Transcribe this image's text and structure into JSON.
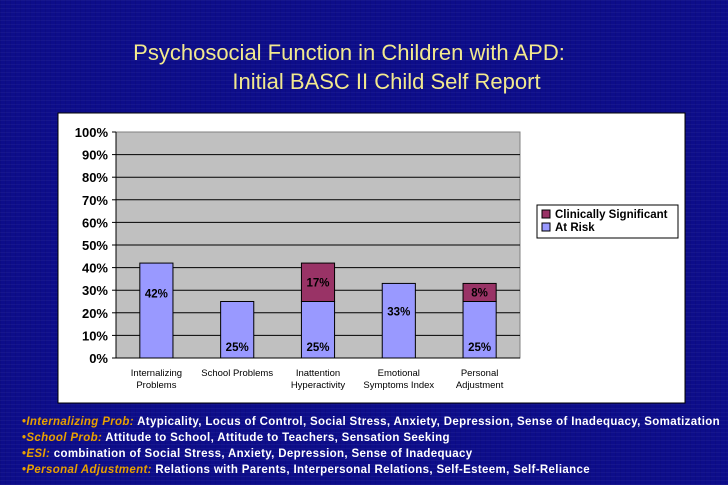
{
  "title": {
    "line1": "Psychosocial Function in Children with APD:",
    "line2": "Initial BASC II Child Self Report"
  },
  "chart_data": {
    "type": "bar",
    "stacked": true,
    "categories": [
      [
        "Internalizing",
        "Problems"
      ],
      [
        "School Problems"
      ],
      [
        "Inattention",
        "Hyperactivity"
      ],
      [
        "Emotional",
        "Symptoms Index"
      ],
      [
        "Personal",
        "Adjustment"
      ]
    ],
    "series": [
      {
        "name": "At Risk",
        "values": [
          42,
          25,
          25,
          33,
          25
        ],
        "labels": [
          "42%",
          "25%",
          "25%",
          "33%",
          "25%"
        ],
        "color": "#9999ff"
      },
      {
        "name": "Clinically Significant",
        "values": [
          0,
          0,
          17,
          0,
          8
        ],
        "labels": [
          "",
          "",
          "17%",
          "",
          "8%"
        ],
        "color": "#993366"
      }
    ],
    "legend_order": [
      "Clinically Significant",
      "At Risk"
    ],
    "legend_position": "right",
    "y_ticks": [
      "100%",
      "90%",
      "80%",
      "70%",
      "60%",
      "50%",
      "40%",
      "30%",
      "20%",
      "10%",
      "0%"
    ],
    "ylim": [
      0,
      100
    ],
    "grid": true,
    "plot_background": "#c0c0c0"
  },
  "notes": [
    {
      "bullet": "•",
      "term": "Internalizing Prob:",
      "text": " Atypicality, Locus of Control, Social Stress, Anxiety, Depression, Sense of Inadequacy, Somatization"
    },
    {
      "bullet": "•",
      "term": "School Prob:",
      "text": " Attitude to School, Attitude to Teachers, Sensation Seeking"
    },
    {
      "bullet": "•",
      "term": "ESI:",
      "text": " combination of Social Stress, Anxiety, Depression, Sense of Inadequacy"
    },
    {
      "bullet": "•",
      "term": "Personal Adjustment:",
      "text": " Relations with Parents, Interpersonal Relations, Self-Esteem, Self-Reliance"
    }
  ],
  "colors": {
    "background": "#0d0d8a",
    "title": "#f2e98e",
    "note_term": "#e8a000",
    "note_text": "#ffffff"
  }
}
